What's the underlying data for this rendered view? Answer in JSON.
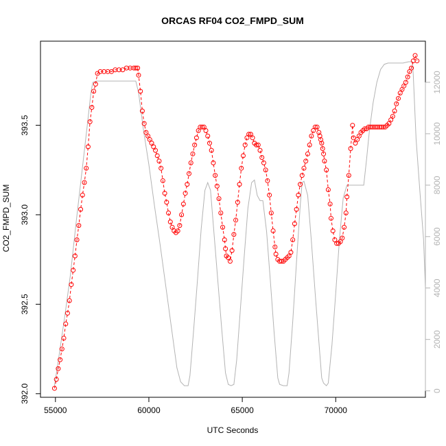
{
  "chart_data": {
    "type": "line",
    "title": "ORCAS RF04 CO2_FMPD_SUM",
    "xlabel": "UTC Seconds",
    "ylabel": "CO2_FMPD_SUM",
    "xlim": [
      54200,
      74800
    ],
    "ylim": [
      391.98,
      393.97
    ],
    "y2lim": [
      -250,
      13600
    ],
    "x_ticks": [
      55000,
      60000,
      65000,
      70000
    ],
    "x_tick_labels": [
      "55000",
      "60000",
      "65000",
      "70000"
    ],
    "y_ticks": [
      392.0,
      392.5,
      393.0,
      393.5
    ],
    "y_tick_labels": [
      "392.0",
      "392.5",
      "393.0",
      "393.5"
    ],
    "y2_ticks": [
      0,
      2000,
      4000,
      6000,
      8000,
      10000,
      12000
    ],
    "y2_tick_labels": [
      "0",
      "2000",
      "4000",
      "6000",
      "8000",
      "10000",
      "12000"
    ],
    "grid": false,
    "colors": {
      "co2": "#ff0000",
      "altitude": "#b3b3b3"
    },
    "series": [
      {
        "role": "co2",
        "style": "open circles joined by dashed line",
        "points": [
          [
            54950,
            392.03
          ],
          [
            55050,
            392.08
          ],
          [
            55150,
            392.14
          ],
          [
            55250,
            392.19
          ],
          [
            55350,
            392.25
          ],
          [
            55450,
            392.31
          ],
          [
            55550,
            392.39
          ],
          [
            55650,
            392.45
          ],
          [
            55750,
            392.52
          ],
          [
            55850,
            392.61
          ],
          [
            55950,
            392.69
          ],
          [
            56050,
            392.77
          ],
          [
            56150,
            392.86
          ],
          [
            56250,
            392.94
          ],
          [
            56350,
            393.03
          ],
          [
            56450,
            393.11
          ],
          [
            56550,
            393.18
          ],
          [
            56650,
            393.26
          ],
          [
            56750,
            393.38
          ],
          [
            56850,
            393.52
          ],
          [
            56950,
            393.6
          ],
          [
            57050,
            393.69
          ],
          [
            57150,
            393.73
          ],
          [
            57250,
            393.79
          ],
          [
            57400,
            393.8
          ],
          [
            57600,
            393.8
          ],
          [
            57800,
            393.8
          ],
          [
            58000,
            393.8
          ],
          [
            58200,
            393.81
          ],
          [
            58400,
            393.81
          ],
          [
            58600,
            393.81
          ],
          [
            58800,
            393.82
          ],
          [
            59000,
            393.82
          ],
          [
            59200,
            393.82
          ],
          [
            59300,
            393.82
          ],
          [
            59400,
            393.82
          ],
          [
            59450,
            393.78
          ],
          [
            59550,
            393.69
          ],
          [
            59650,
            393.58
          ],
          [
            59750,
            393.51
          ],
          [
            59850,
            393.46
          ],
          [
            59950,
            393.44
          ],
          [
            60050,
            393.42
          ],
          [
            60150,
            393.4
          ],
          [
            60250,
            393.38
          ],
          [
            60350,
            393.36
          ],
          [
            60450,
            393.33
          ],
          [
            60550,
            393.3
          ],
          [
            60650,
            393.26
          ],
          [
            60750,
            393.19
          ],
          [
            60850,
            393.12
          ],
          [
            60950,
            393.07
          ],
          [
            61050,
            393.01
          ],
          [
            61150,
            392.96
          ],
          [
            61250,
            392.93
          ],
          [
            61350,
            392.91
          ],
          [
            61450,
            392.9
          ],
          [
            61550,
            392.91
          ],
          [
            61650,
            392.94
          ],
          [
            61750,
            393.0
          ],
          [
            61850,
            393.06
          ],
          [
            61950,
            393.12
          ],
          [
            62050,
            393.17
          ],
          [
            62150,
            393.23
          ],
          [
            62250,
            393.29
          ],
          [
            62350,
            393.34
          ],
          [
            62450,
            393.39
          ],
          [
            62550,
            393.43
          ],
          [
            62650,
            393.47
          ],
          [
            62750,
            393.49
          ],
          [
            62850,
            393.49
          ],
          [
            62950,
            393.49
          ],
          [
            63050,
            393.47
          ],
          [
            63150,
            393.44
          ],
          [
            63250,
            393.4
          ],
          [
            63350,
            393.36
          ],
          [
            63450,
            393.29
          ],
          [
            63550,
            393.22
          ],
          [
            63650,
            393.16
          ],
          [
            63750,
            393.09
          ],
          [
            63850,
            393.01
          ],
          [
            63950,
            392.93
          ],
          [
            64050,
            392.86
          ],
          [
            64100,
            392.81
          ],
          [
            64150,
            392.77
          ],
          [
            64250,
            392.76
          ],
          [
            64350,
            392.74
          ],
          [
            64450,
            392.8
          ],
          [
            64550,
            392.89
          ],
          [
            64650,
            392.97
          ],
          [
            64750,
            393.07
          ],
          [
            64850,
            393.17
          ],
          [
            64950,
            393.26
          ],
          [
            65050,
            393.33
          ],
          [
            65150,
            393.39
          ],
          [
            65250,
            393.43
          ],
          [
            65350,
            393.45
          ],
          [
            65450,
            393.45
          ],
          [
            65550,
            393.43
          ],
          [
            65650,
            393.4
          ],
          [
            65750,
            393.39
          ],
          [
            65850,
            393.39
          ],
          [
            65950,
            393.36
          ],
          [
            66050,
            393.32
          ],
          [
            66150,
            393.29
          ],
          [
            66250,
            393.25
          ],
          [
            66350,
            393.19
          ],
          [
            66450,
            393.11
          ],
          [
            66550,
            393.01
          ],
          [
            66650,
            392.91
          ],
          [
            66750,
            392.82
          ],
          [
            66800,
            392.78
          ],
          [
            66900,
            392.75
          ],
          [
            67000,
            392.74
          ],
          [
            67100,
            392.74
          ],
          [
            67200,
            392.74
          ],
          [
            67300,
            392.75
          ],
          [
            67400,
            392.76
          ],
          [
            67500,
            392.77
          ],
          [
            67600,
            392.79
          ],
          [
            67700,
            392.86
          ],
          [
            67800,
            392.95
          ],
          [
            67900,
            393.03
          ],
          [
            68000,
            393.11
          ],
          [
            68100,
            393.17
          ],
          [
            68200,
            393.22
          ],
          [
            68300,
            393.26
          ],
          [
            68400,
            393.3
          ],
          [
            68500,
            393.34
          ],
          [
            68600,
            393.39
          ],
          [
            68700,
            393.44
          ],
          [
            68800,
            393.47
          ],
          [
            68900,
            393.49
          ],
          [
            69000,
            393.49
          ],
          [
            69100,
            393.46
          ],
          [
            69150,
            393.44
          ],
          [
            69200,
            393.42
          ],
          [
            69250,
            393.4
          ],
          [
            69300,
            393.37
          ],
          [
            69350,
            393.34
          ],
          [
            69400,
            393.3
          ],
          [
            69500,
            393.25
          ],
          [
            69600,
            393.14
          ],
          [
            69700,
            393.06
          ],
          [
            69750,
            392.98
          ],
          [
            69850,
            392.91
          ],
          [
            69950,
            392.86
          ],
          [
            70050,
            392.84
          ],
          [
            70150,
            392.84
          ],
          [
            70250,
            392.85
          ],
          [
            70350,
            392.87
          ],
          [
            70450,
            392.93
          ],
          [
            70550,
            393.01
          ],
          [
            70600,
            393.1
          ],
          [
            70700,
            393.22
          ],
          [
            70800,
            393.37
          ],
          [
            70900,
            393.5
          ],
          [
            70950,
            393.43
          ],
          [
            71050,
            393.4
          ],
          [
            71150,
            393.42
          ],
          [
            71250,
            393.44
          ],
          [
            71350,
            393.46
          ],
          [
            71450,
            393.47
          ],
          [
            71550,
            393.48
          ],
          [
            71650,
            393.48
          ],
          [
            71750,
            393.49
          ],
          [
            71850,
            393.49
          ],
          [
            71950,
            393.49
          ],
          [
            72050,
            393.49
          ],
          [
            72150,
            393.49
          ],
          [
            72250,
            393.49
          ],
          [
            72350,
            393.49
          ],
          [
            72450,
            393.49
          ],
          [
            72550,
            393.49
          ],
          [
            72650,
            393.49
          ],
          [
            72750,
            393.5
          ],
          [
            72850,
            393.51
          ],
          [
            72950,
            393.53
          ],
          [
            73050,
            393.55
          ],
          [
            73150,
            393.58
          ],
          [
            73250,
            393.62
          ],
          [
            73350,
            393.65
          ],
          [
            73450,
            393.68
          ],
          [
            73550,
            393.7
          ],
          [
            73650,
            393.72
          ],
          [
            73750,
            393.74
          ],
          [
            73850,
            393.77
          ],
          [
            73950,
            393.8
          ],
          [
            74050,
            393.82
          ],
          [
            74150,
            393.86
          ],
          [
            74250,
            393.89
          ],
          [
            74350,
            393.86
          ]
        ]
      },
      {
        "role": "altitude",
        "axis": "right",
        "style": "solid line",
        "points": [
          [
            54950,
            200
          ],
          [
            55200,
            1400
          ],
          [
            55500,
            2900
          ],
          [
            55800,
            4500
          ],
          [
            56100,
            6500
          ],
          [
            56400,
            8400
          ],
          [
            56700,
            10300
          ],
          [
            56900,
            11600
          ],
          [
            57000,
            12000
          ],
          [
            57200,
            12050
          ],
          [
            57600,
            12050
          ],
          [
            58000,
            12050
          ],
          [
            58400,
            12050
          ],
          [
            58800,
            12050
          ],
          [
            59300,
            12050
          ],
          [
            59450,
            11600
          ],
          [
            59700,
            10200
          ],
          [
            60000,
            8800
          ],
          [
            60300,
            7200
          ],
          [
            60600,
            5700
          ],
          [
            60900,
            4100
          ],
          [
            61200,
            2500
          ],
          [
            61500,
            900
          ],
          [
            61700,
            350
          ],
          [
            61900,
            200
          ],
          [
            62100,
            200
          ],
          [
            62200,
            600
          ],
          [
            62400,
            2400
          ],
          [
            62600,
            4300
          ],
          [
            62800,
            6300
          ],
          [
            63000,
            7800
          ],
          [
            63150,
            8100
          ],
          [
            63300,
            7800
          ],
          [
            63500,
            6000
          ],
          [
            63700,
            4200
          ],
          [
            63900,
            2400
          ],
          [
            64100,
            700
          ],
          [
            64250,
            250
          ],
          [
            64400,
            200
          ],
          [
            64550,
            250
          ],
          [
            64700,
            1200
          ],
          [
            64900,
            3200
          ],
          [
            65100,
            5200
          ],
          [
            65300,
            7100
          ],
          [
            65500,
            8100
          ],
          [
            65650,
            8200
          ],
          [
            65800,
            7600
          ],
          [
            65950,
            7400
          ],
          [
            66100,
            7400
          ],
          [
            66300,
            6200
          ],
          [
            66500,
            4300
          ],
          [
            66700,
            2300
          ],
          [
            66900,
            500
          ],
          [
            67000,
            250
          ],
          [
            67200,
            200
          ],
          [
            67400,
            200
          ],
          [
            67500,
            700
          ],
          [
            67700,
            2700
          ],
          [
            67900,
            5000
          ],
          [
            68100,
            7200
          ],
          [
            68200,
            8100
          ],
          [
            68300,
            8150
          ],
          [
            68500,
            7600
          ],
          [
            68700,
            5800
          ],
          [
            68900,
            3800
          ],
          [
            69100,
            1900
          ],
          [
            69250,
            500
          ],
          [
            69350,
            300
          ],
          [
            69500,
            200
          ],
          [
            69600,
            300
          ],
          [
            69800,
            1800
          ],
          [
            70000,
            3800
          ],
          [
            70200,
            5900
          ],
          [
            70400,
            7500
          ],
          [
            70600,
            8000
          ],
          [
            70800,
            8000
          ],
          [
            71000,
            8000
          ],
          [
            71300,
            8000
          ],
          [
            71500,
            8000
          ],
          [
            71650,
            9000
          ],
          [
            71800,
            10100
          ],
          [
            72000,
            11200
          ],
          [
            72200,
            12000
          ],
          [
            72400,
            12500
          ],
          [
            72600,
            12700
          ],
          [
            72800,
            12750
          ],
          [
            73000,
            12750
          ],
          [
            73300,
            12750
          ],
          [
            73600,
            12750
          ],
          [
            73900,
            12800
          ],
          [
            74100,
            12800
          ],
          [
            74150,
            12300
          ],
          [
            74300,
            9800
          ],
          [
            74500,
            7800
          ],
          [
            74700,
            5900
          ],
          [
            74800,
            4000
          ]
        ]
      }
    ]
  }
}
